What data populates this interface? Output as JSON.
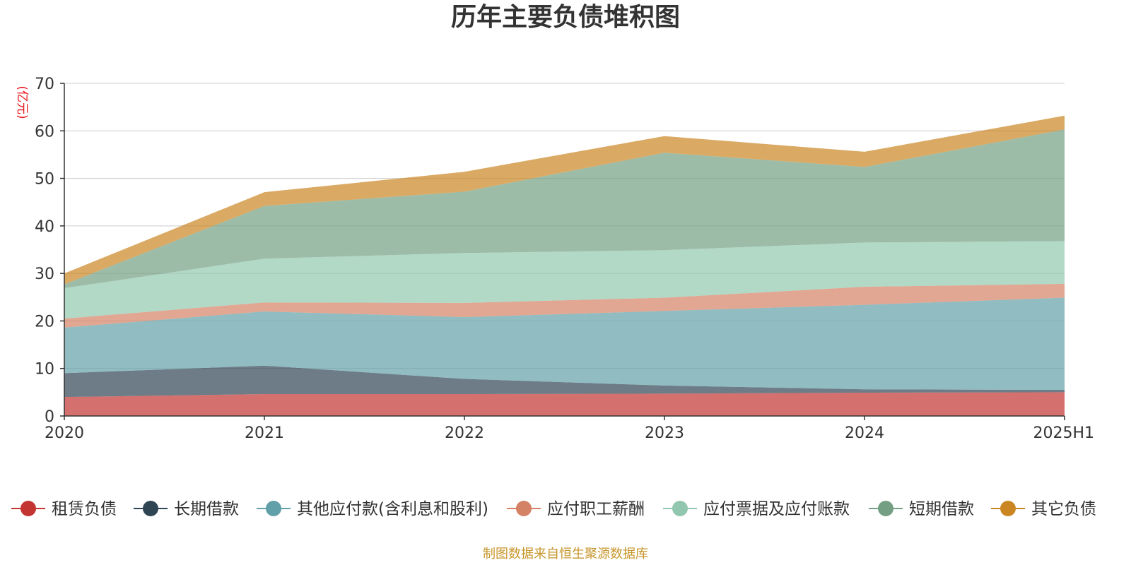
{
  "title": "历年主要负债堆积图",
  "unit": "(亿元)",
  "footer": "制图数据来自恒生聚源数据库",
  "chart_data": {
    "type": "area",
    "stacked": true,
    "categories": [
      "2020",
      "2021",
      "2022",
      "2023",
      "2024",
      "2025H1"
    ],
    "y_ticks": [
      "0",
      "10",
      "20",
      "30",
      "40",
      "50",
      "60",
      "70"
    ],
    "ylim": [
      0,
      70
    ],
    "grid": true,
    "legend_position": "bottom",
    "series": [
      {
        "name": "租赁负债",
        "color": "#c23531",
        "values": [
          4.0,
          4.6,
          4.6,
          4.7,
          4.9,
          5.0
        ]
      },
      {
        "name": "长期借款",
        "color": "#2f4554",
        "values": [
          5.0,
          6.0,
          3.2,
          1.7,
          0.7,
          0.5
        ]
      },
      {
        "name": "其他应付款(含利息和股利)",
        "color": "#61a0a8",
        "values": [
          9.6,
          11.4,
          13.0,
          15.7,
          17.8,
          19.4
        ]
      },
      {
        "name": "应付职工薪酬",
        "color": "#d48265",
        "values": [
          1.9,
          1.9,
          3.0,
          2.8,
          3.8,
          2.9
        ]
      },
      {
        "name": "应付票据及应付账款",
        "color": "#91c7ae",
        "values": [
          6.4,
          9.2,
          10.5,
          10.0,
          9.3,
          9.0
        ]
      },
      {
        "name": "短期借款",
        "color": "#749f83",
        "values": [
          0.8,
          11.1,
          12.9,
          20.5,
          15.9,
          23.5
        ]
      },
      {
        "name": "其它负债",
        "color": "#ca8622",
        "values": [
          2.3,
          2.9,
          4.2,
          3.5,
          3.2,
          2.9
        ]
      }
    ]
  }
}
